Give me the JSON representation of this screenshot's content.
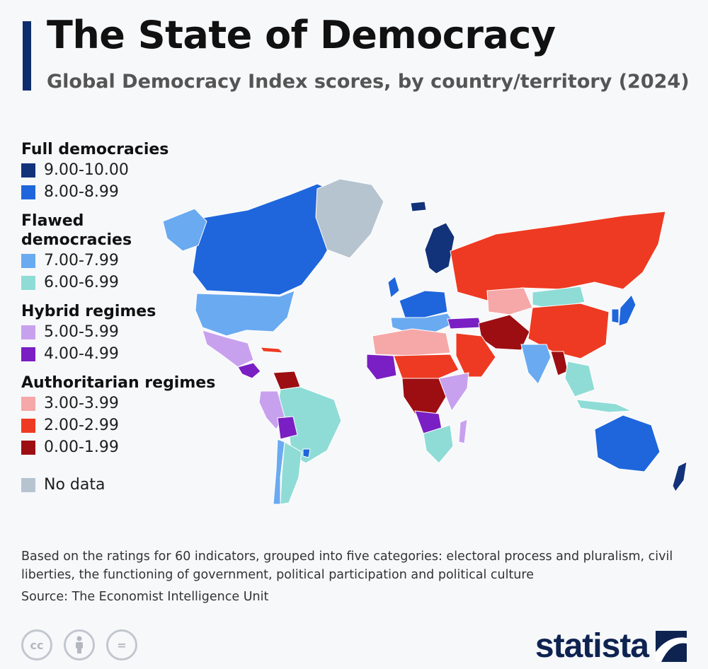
{
  "header": {
    "title": "The State of Democracy",
    "subtitle": "Global Democracy Index scores, by country/territory (2024)"
  },
  "legend": {
    "groups": [
      {
        "heading": "Full democracies",
        "items": [
          {
            "label": "9.00-10.00",
            "color": "#12337a"
          },
          {
            "label": "8.00-8.99",
            "color": "#1f66dc"
          }
        ]
      },
      {
        "heading": "Flawed democracies",
        "items": [
          {
            "label": "7.00-7.99",
            "color": "#6aaaf0"
          },
          {
            "label": "6.00-6.99",
            "color": "#8fdcd6"
          }
        ]
      },
      {
        "heading": "Hybrid regimes",
        "items": [
          {
            "label": "5.00-5.99",
            "color": "#c8a1ee"
          },
          {
            "label": "4.00-4.99",
            "color": "#7a1fc3"
          }
        ]
      },
      {
        "heading": "Authoritarian regimes",
        "items": [
          {
            "label": "3.00-3.99",
            "color": "#f6a7a7"
          },
          {
            "label": "2.00-2.99",
            "color": "#ee3a22"
          },
          {
            "label": "0.00-1.99",
            "color": "#9c0e12"
          }
        ]
      }
    ],
    "no_data": {
      "label": "No data",
      "color": "#b6c4d0"
    }
  },
  "map_regions": [
    {
      "name": "greenland",
      "color": "#b6c4d0"
    },
    {
      "name": "canada",
      "color": "#1f66dc"
    },
    {
      "name": "alaska",
      "color": "#6aaaf0"
    },
    {
      "name": "usa",
      "color": "#6aaaf0"
    },
    {
      "name": "mexico",
      "color": "#c8a1ee"
    },
    {
      "name": "central-america",
      "color": "#7a1fc3"
    },
    {
      "name": "cuba",
      "color": "#ee3a22"
    },
    {
      "name": "venezuela",
      "color": "#9c0e12"
    },
    {
      "name": "brazil",
      "color": "#8fdcd6"
    },
    {
      "name": "peru",
      "color": "#c8a1ee"
    },
    {
      "name": "bolivia",
      "color": "#7a1fc3"
    },
    {
      "name": "chile",
      "color": "#6aaaf0"
    },
    {
      "name": "argentina",
      "color": "#8fdcd6"
    },
    {
      "name": "uruguay",
      "color": "#1f66dc"
    },
    {
      "name": "nordic",
      "color": "#12337a"
    },
    {
      "name": "western-europe",
      "color": "#1f66dc"
    },
    {
      "name": "southern-europe",
      "color": "#6aaaf0"
    },
    {
      "name": "uk",
      "color": "#1f66dc"
    },
    {
      "name": "iceland",
      "color": "#12337a"
    },
    {
      "name": "turkey",
      "color": "#7a1fc3"
    },
    {
      "name": "russia",
      "color": "#ee3a22"
    },
    {
      "name": "kazakhstan",
      "color": "#f6a7a7"
    },
    {
      "name": "mongolia",
      "color": "#8fdcd6"
    },
    {
      "name": "china",
      "color": "#ee3a22"
    },
    {
      "name": "iran-afghanistan",
      "color": "#9c0e12"
    },
    {
      "name": "arabia",
      "color": "#ee3a22"
    },
    {
      "name": "india",
      "color": "#6aaaf0"
    },
    {
      "name": "myanmar",
      "color": "#9c0e12"
    },
    {
      "name": "southeast-asia",
      "color": "#8fdcd6"
    },
    {
      "name": "japan",
      "color": "#1f66dc"
    },
    {
      "name": "korea",
      "color": "#1f66dc"
    },
    {
      "name": "north-africa",
      "color": "#f6a7a7"
    },
    {
      "name": "west-africa",
      "color": "#7a1fc3"
    },
    {
      "name": "sahel",
      "color": "#ee3a22"
    },
    {
      "name": "central-africa",
      "color": "#9c0e12"
    },
    {
      "name": "east-africa",
      "color": "#c8a1ee"
    },
    {
      "name": "congo",
      "color": "#7a1fc3"
    },
    {
      "name": "southern-africa",
      "color": "#8fdcd6"
    },
    {
      "name": "madagascar",
      "color": "#c8a1ee"
    },
    {
      "name": "indonesia",
      "color": "#8fdcd6"
    },
    {
      "name": "australia",
      "color": "#1f66dc"
    },
    {
      "name": "new-zealand",
      "color": "#12337a"
    }
  ],
  "footnote": "Based on the ratings for 60 indicators, grouped into five categories: electoral process and pluralism, civil liberties, the functioning of government, political participation and political culture",
  "source": "Source: The Economist Intelligence Unit",
  "license_icons": [
    {
      "name": "cc-icon",
      "glyph": "cc"
    },
    {
      "name": "attribution-icon",
      "glyph": ""
    },
    {
      "name": "no-derivatives-icon",
      "glyph": "="
    }
  ],
  "brand": {
    "name": "statista"
  }
}
